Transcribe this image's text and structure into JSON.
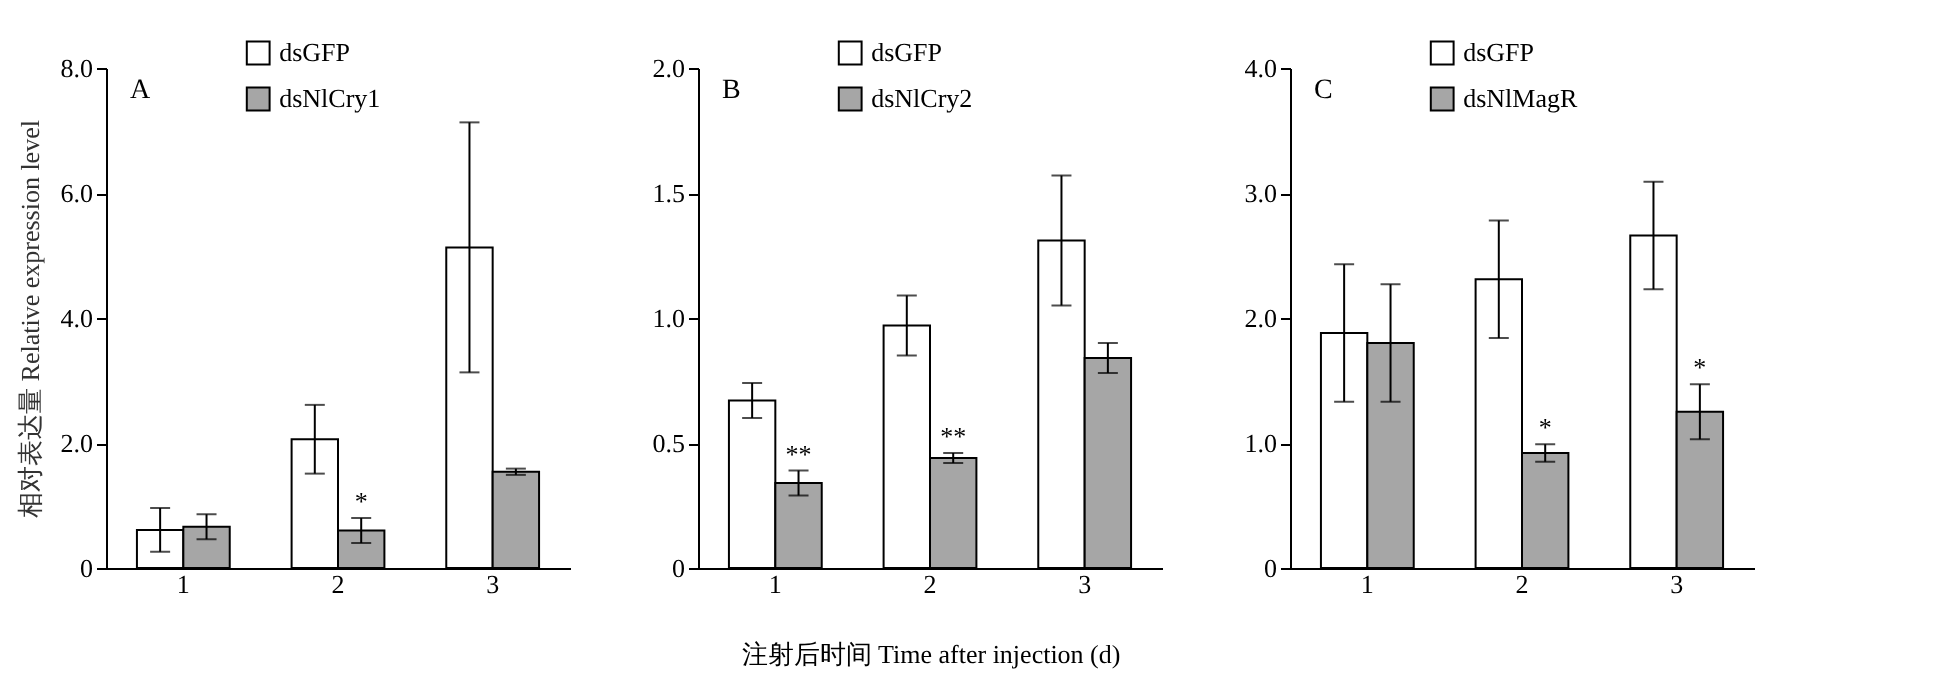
{
  "chart_data": [
    {
      "type": "bar",
      "ylabel": "相对表达量 Relative expression level",
      "categories": [
        "1",
        "2",
        "3"
      ],
      "legend": "top",
      "annotations": [
        "A",
        {
          "text": "*",
          "x": "2",
          "y": 0.8
        }
      ],
      "ylim": [
        0,
        8
      ],
      "yticks": [
        0,
        {
          "value": 2,
          "label": "2.0"
        },
        {
          "value": 4,
          "label": "4.0"
        },
        {
          "value": 6,
          "label": "6.0"
        },
        {
          "value": 8,
          "label": "8.0"
        }
      ],
      "series": [
        {
          "name": "dsGFP",
          "color": "#ffffff",
          "values": [
            0.61,
            2.06,
            5.13
          ],
          "errors": [
            0.35,
            0.55,
            2.0
          ]
        },
        {
          "name": "dsNlCry1",
          "color": "#a6a6a6",
          "values": [
            0.66,
            0.6,
            1.54
          ],
          "errors": [
            0.2,
            0.2,
            0.05
          ]
        }
      ]
    },
    {
      "type": "bar",
      "xlabel": "注射后时间 Time after injection (d)",
      "categories": [
        "1",
        "2",
        "3"
      ],
      "legend": "top",
      "annotations": [
        "B",
        {
          "text": "**",
          "x": "1",
          "y": 0.39
        },
        {
          "text": "**",
          "x": "2",
          "y": 0.46
        }
      ],
      "ylim": [
        0,
        2
      ],
      "yticks": [
        0,
        0.5,
        {
          "value": 1,
          "label": "1.0"
        },
        1.5,
        {
          "value": 2,
          "label": "2.0"
        }
      ],
      "series": [
        {
          "name": "dsGFP",
          "color": "#ffffff",
          "values": [
            0.67,
            0.97,
            1.31
          ],
          "errors": [
            0.07,
            0.12,
            0.26
          ]
        },
        {
          "name": "dsNlCry2",
          "color": "#a6a6a6",
          "values": [
            0.34,
            0.44,
            0.84
          ],
          "errors": [
            0.05,
            0.02,
            0.06
          ]
        }
      ]
    },
    {
      "type": "bar",
      "categories": [
        "1",
        "2",
        "3"
      ],
      "legend": "top",
      "annotations": [
        "C",
        {
          "text": "*",
          "x": "2",
          "y": 0.99
        },
        {
          "text": "*",
          "x": "3",
          "y": 1.47
        }
      ],
      "ylim": [
        0,
        4
      ],
      "yticks": [
        0,
        {
          "value": 1,
          "label": "1.0"
        },
        {
          "value": 2,
          "label": "2.0"
        },
        {
          "value": 3,
          "label": "3.0"
        },
        {
          "value": 4,
          "label": "4.0"
        }
      ],
      "series": [
        {
          "name": "dsGFP",
          "color": "#ffffff",
          "values": [
            1.88,
            2.31,
            2.66
          ],
          "errors": [
            0.55,
            0.47,
            0.43
          ]
        },
        {
          "name": "dsNlMagR",
          "color": "#a6a6a6",
          "values": [
            1.8,
            0.92,
            1.25
          ],
          "errors": [
            0.47,
            0.07,
            0.22
          ]
        }
      ]
    }
  ]
}
